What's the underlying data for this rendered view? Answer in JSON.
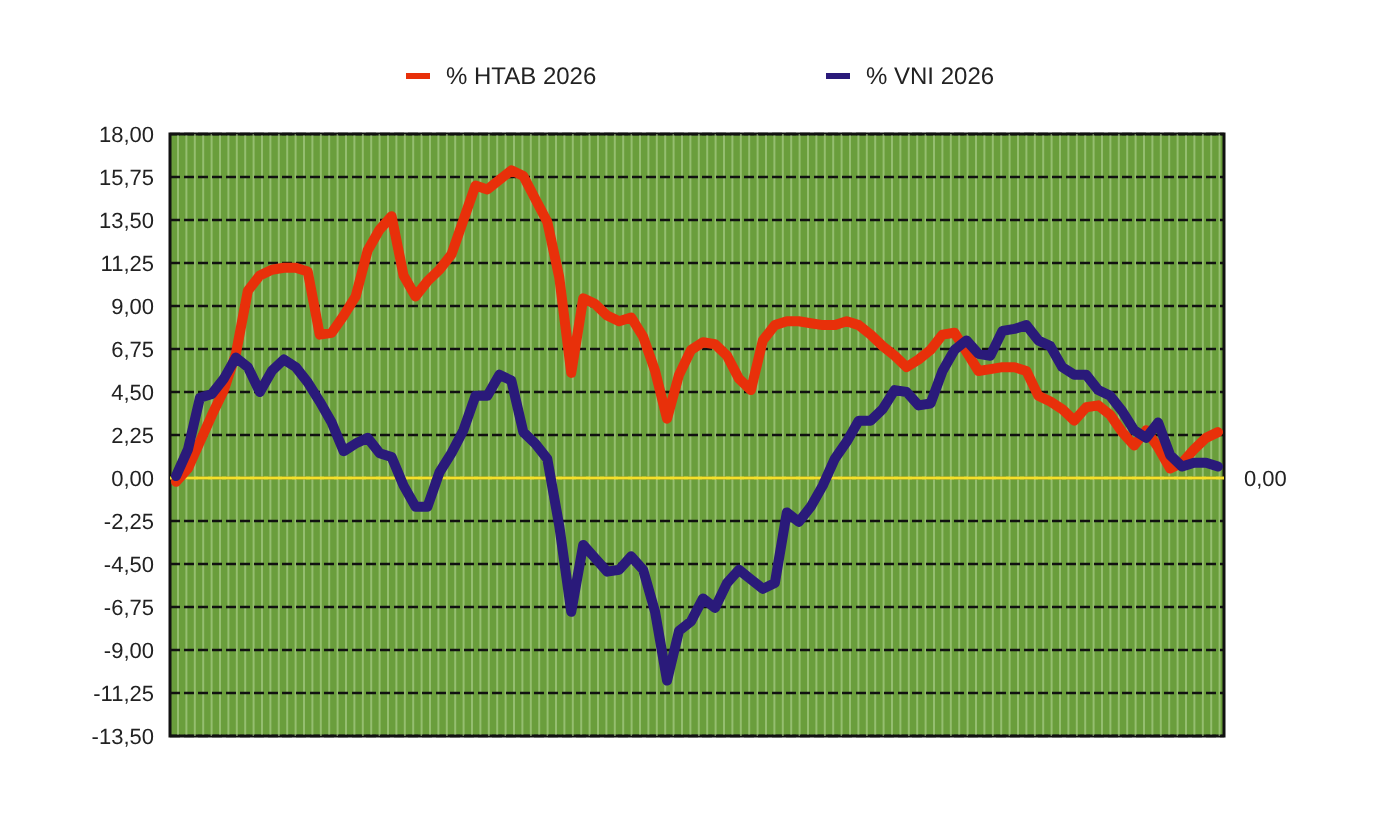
{
  "chart_data": {
    "type": "line",
    "categories": [
      null,
      null,
      null,
      null,
      null,
      null,
      null,
      null,
      null,
      null,
      null,
      null,
      null,
      null,
      null,
      null,
      null,
      null,
      null,
      null,
      null,
      null,
      null,
      null,
      null,
      null,
      null,
      null,
      null,
      null,
      null,
      null,
      null,
      null,
      null,
      null,
      null,
      null,
      null,
      null,
      null,
      null,
      null,
      null,
      null,
      null,
      null,
      null,
      null,
      null,
      null,
      null,
      null,
      null,
      null,
      null,
      null,
      null,
      null,
      null,
      null,
      null,
      null,
      null,
      null,
      null,
      null,
      null,
      null,
      null,
      null,
      null,
      null,
      null,
      null,
      null,
      null,
      null,
      null,
      null,
      null,
      null,
      null,
      null,
      null,
      null,
      null,
      null
    ],
    "series": [
      {
        "name": "% HTAB 2026",
        "color": "#e8300a",
        "values": [
          -0.2,
          0.5,
          1.9,
          3.3,
          4.6,
          6.5,
          9.8,
          10.6,
          10.9,
          11.0,
          11.0,
          10.8,
          7.5,
          7.6,
          8.5,
          9.5,
          11.9,
          13.0,
          13.7,
          10.6,
          9.5,
          10.3,
          10.9,
          11.7,
          13.5,
          15.3,
          15.1,
          15.6,
          16.1,
          15.8,
          14.6,
          13.4,
          10.5,
          5.5,
          9.4,
          9.1,
          8.5,
          8.2,
          8.4,
          7.4,
          5.6,
          3.1,
          5.4,
          6.7,
          7.1,
          7.0,
          6.4,
          5.2,
          4.6,
          7.2,
          8.0,
          8.2,
          8.2,
          8.1,
          8.0,
          8.0,
          8.2,
          8.0,
          7.5,
          6.9,
          6.4,
          5.8,
          6.2,
          6.7,
          7.5,
          7.6,
          6.6,
          5.6,
          5.7,
          5.8,
          5.8,
          5.6,
          4.3,
          4.0,
          3.6,
          3.0,
          3.7,
          3.8,
          3.3,
          2.4,
          1.7,
          2.5,
          1.6,
          0.5,
          0.8,
          1.5,
          2.1,
          2.4
        ]
      },
      {
        "name": "% VNI 2026",
        "color": "#2a1a7a",
        "values": [
          0.1,
          1.5,
          4.2,
          4.4,
          5.2,
          6.3,
          5.8,
          4.5,
          5.6,
          6.2,
          5.8,
          5.0,
          4.0,
          2.9,
          1.4,
          1.8,
          2.1,
          1.3,
          1.1,
          -0.4,
          -1.5,
          -1.5,
          0.3,
          1.3,
          2.5,
          4.3,
          4.3,
          5.4,
          5.1,
          2.4,
          1.8,
          1.0,
          -2.5,
          -7.0,
          -3.5,
          -4.2,
          -4.9,
          -4.8,
          -4.1,
          -4.8,
          -7.0,
          -10.6,
          -8.0,
          -7.5,
          -6.3,
          -6.8,
          -5.5,
          -4.8,
          -5.3,
          -5.8,
          -5.5,
          -1.8,
          -2.3,
          -1.5,
          -0.4,
          1.0,
          1.9,
          3.0,
          3.0,
          3.6,
          4.6,
          4.5,
          3.8,
          3.9,
          5.6,
          6.7,
          7.2,
          6.5,
          6.4,
          7.7,
          7.8,
          8.0,
          7.2,
          6.9,
          5.8,
          5.4,
          5.4,
          4.6,
          4.3,
          3.5,
          2.5,
          2.1,
          2.9,
          1.2,
          0.6,
          0.8,
          0.8,
          0.6
        ]
      }
    ],
    "ylim": [
      -13.5,
      18
    ],
    "yticks": [
      {
        "value": 18,
        "label": "18,00"
      },
      {
        "value": 15.75,
        "label": "15,75"
      },
      {
        "value": 13.5,
        "label": "13,50"
      },
      {
        "value": 11.25,
        "label": "11,25"
      },
      {
        "value": 9,
        "label": "9,00"
      },
      {
        "value": 6.75,
        "label": "6,75"
      },
      {
        "value": 4.5,
        "label": "4,50"
      },
      {
        "value": 2.25,
        "label": "2,25"
      },
      {
        "value": 0,
        "label": "0,00"
      },
      {
        "value": -2.25,
        "label": "-2,25"
      },
      {
        "value": -4.5,
        "label": "-4,50"
      },
      {
        "value": -6.75,
        "label": "-6,75"
      },
      {
        "value": -9,
        "label": "-9,00"
      },
      {
        "value": -11.25,
        "label": "-11,25"
      },
      {
        "value": -13.5,
        "label": "-13,50"
      }
    ],
    "ref_lines": [
      {
        "axis": "y",
        "value": 0,
        "label": "0,00",
        "color": "#f5e02a"
      }
    ],
    "grid": true,
    "legend": "top",
    "marker": "none",
    "line_style": "solid"
  }
}
